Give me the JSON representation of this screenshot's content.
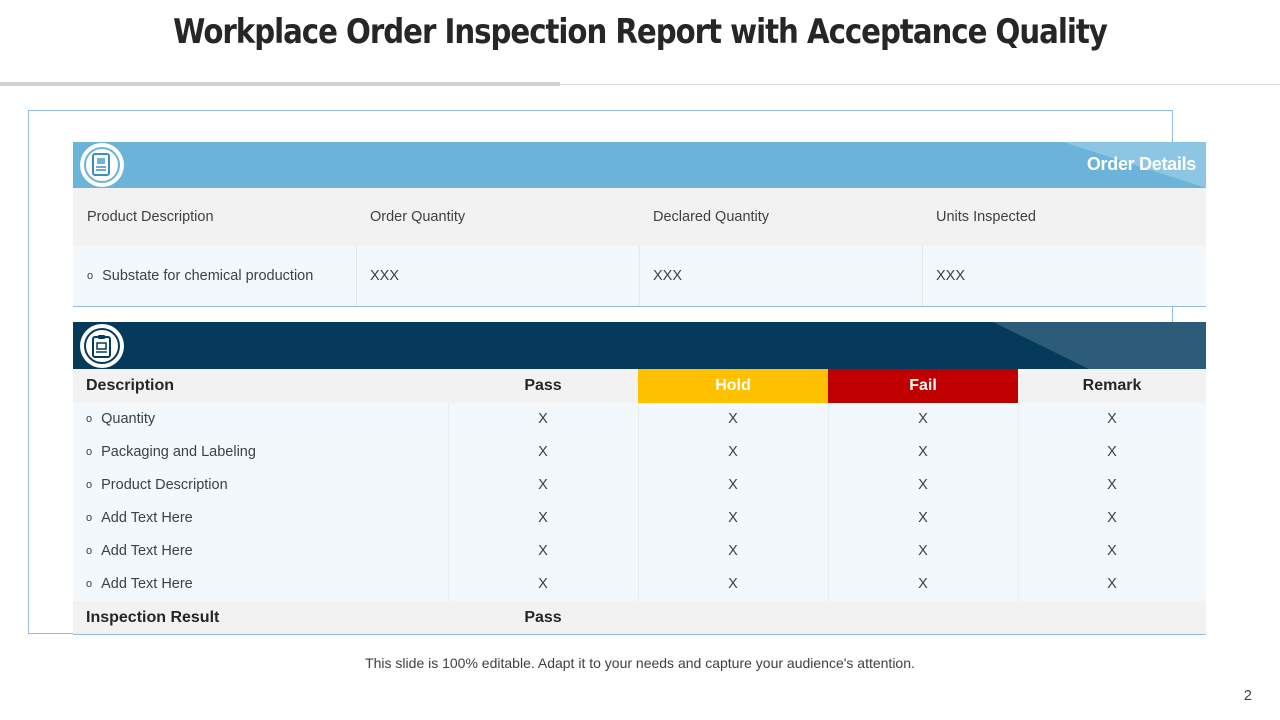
{
  "title": "Workplace Order Inspection Report with Acceptance Quality",
  "order_details": {
    "band_title": "Order Details",
    "icon": "document-box-icon",
    "headers": [
      "Product Description",
      "Order Quantity",
      "Declared Quantity",
      "Units Inspected"
    ],
    "row": [
      "Substate for chemical production",
      "XXX",
      "XXX",
      "XXX"
    ]
  },
  "inspection": {
    "icon": "clipboard-icon",
    "headers": {
      "description": "Description",
      "pass": "Pass",
      "hold": "Hold",
      "fail": "Fail",
      "remark": "Remark"
    },
    "header_colors": {
      "hold": "#ffc000",
      "fail": "#c00000"
    },
    "rows": [
      {
        "label": "Quantity",
        "pass": "X",
        "hold": "X",
        "fail": "X",
        "remark": "X"
      },
      {
        "label": "Packaging and Labeling",
        "pass": "X",
        "hold": "X",
        "fail": "X",
        "remark": "X"
      },
      {
        "label": "Product Description",
        "pass": "X",
        "hold": "X",
        "fail": "X",
        "remark": "X"
      },
      {
        "label": "Add Text Here",
        "pass": "X",
        "hold": "X",
        "fail": "X",
        "remark": "X"
      },
      {
        "label": "Add Text Here",
        "pass": "X",
        "hold": "X",
        "fail": "X",
        "remark": "X"
      },
      {
        "label": "Add Text Here",
        "pass": "X",
        "hold": "X",
        "fail": "X",
        "remark": "X"
      }
    ],
    "result_label": "Inspection Result",
    "result_value": "Pass"
  },
  "bullet": "o",
  "footer_text": "This slide is 100% editable. Adapt it to your needs and capture your audience's attention.",
  "page_number": "2",
  "colors": {
    "band_light": "#6bb3d9",
    "band_dark": "#063a5a",
    "frame": "#8fbcdf"
  }
}
